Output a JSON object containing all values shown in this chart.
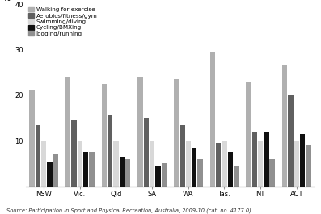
{
  "states": [
    "NSW",
    "Vic.",
    "Qld",
    "SA",
    "WA",
    "Tas.",
    "NT",
    "ACT"
  ],
  "series": {
    "Walking for exercise": [
      21,
      24,
      22.5,
      24,
      23.5,
      29.5,
      23,
      26.5
    ],
    "Aerobics/fitness/gym": [
      13.5,
      14.5,
      15.5,
      15,
      13.5,
      9.5,
      12,
      20
    ],
    "Swimming/diving": [
      10,
      10,
      10,
      10,
      10,
      10,
      10,
      10
    ],
    "Cycling/BMXing": [
      5.5,
      7.5,
      6.5,
      4.5,
      8.5,
      7.5,
      12,
      11.5
    ],
    "Jogging/running": [
      7,
      7.5,
      6,
      5,
      6,
      4.5,
      6,
      9
    ]
  },
  "colors": {
    "Walking for exercise": "#b0b0b0",
    "Aerobics/fitness/gym": "#606060",
    "Swimming/diving": "#d8d8d8",
    "Cycling/BMXing": "#101010",
    "Jogging/running": "#909090"
  },
  "ylim": [
    0,
    40
  ],
  "yticks": [
    0,
    10,
    20,
    30,
    40
  ],
  "ylabel": "%",
  "source": "Source: Participation in Sport and Physical Recreation, Australia, 2009-10 (cat. no. 4177.0).",
  "background_color": "#ffffff",
  "group_width": 0.82,
  "bar_gap": 0.88
}
